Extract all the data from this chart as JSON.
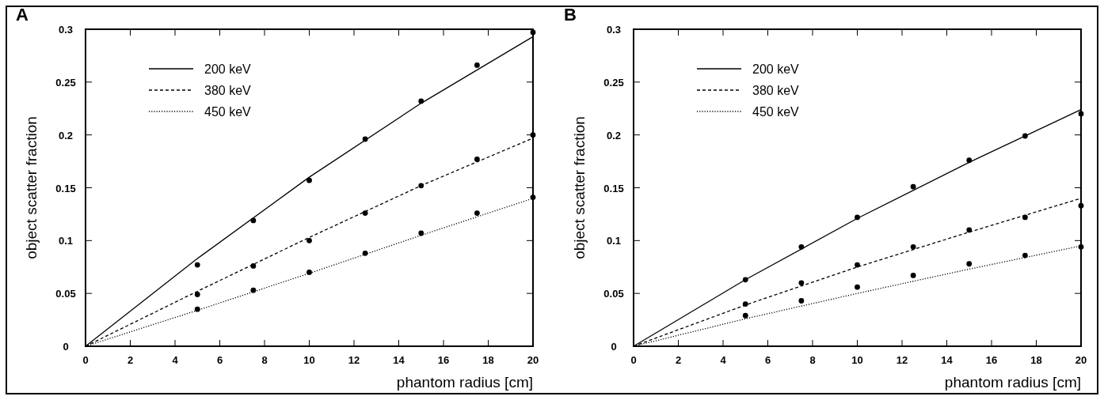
{
  "chart_data": [
    {
      "type": "line",
      "title": "A",
      "xlabel": "phantom radius   [cm]",
      "ylabel": "object scatter fraction",
      "xlim": [
        0,
        20
      ],
      "ylim": [
        0,
        0.3
      ],
      "xticks": [
        0,
        2,
        4,
        6,
        8,
        10,
        12,
        14,
        16,
        18,
        20
      ],
      "yticks": [
        0,
        0.05,
        0.1,
        0.15,
        0.2,
        0.25,
        0.3
      ],
      "grid": false,
      "legend": "top left",
      "series": [
        {
          "name": "200 keV",
          "color": "#000000",
          "line_style": "solid",
          "x": [
            0,
            5,
            10,
            15,
            20
          ],
          "values": [
            0,
            0.083,
            0.16,
            0.23,
            0.293
          ]
        },
        {
          "name": "380 keV",
          "color": "#000000",
          "line_style": "dashed",
          "x": [
            0,
            5,
            10,
            15,
            20
          ],
          "values": [
            0,
            0.052,
            0.103,
            0.152,
            0.197
          ]
        },
        {
          "name": "450 keV",
          "color": "#000000",
          "line_style": "dotted",
          "x": [
            0,
            5,
            10,
            15,
            20
          ],
          "values": [
            0,
            0.034,
            0.069,
            0.105,
            0.14
          ]
        },
        {
          "type": "scatter",
          "color": "#000000",
          "marker": "circle",
          "x": [
            5,
            7.5,
            10,
            12.5,
            15,
            17.5,
            20
          ],
          "values": [
            0.077,
            0.119,
            0.157,
            0.196,
            0.232,
            0.266,
            0.297
          ]
        },
        {
          "type": "scatter",
          "color": "#000000",
          "marker": "circle",
          "x": [
            5,
            7.5,
            10,
            12.5,
            15,
            17.5,
            20
          ],
          "values": [
            0.049,
            0.076,
            0.1,
            0.126,
            0.152,
            0.177,
            0.2
          ]
        },
        {
          "type": "scatter",
          "color": "#000000",
          "marker": "circle",
          "x": [
            5,
            7.5,
            10,
            12.5,
            15,
            17.5,
            20
          ],
          "values": [
            0.035,
            0.053,
            0.07,
            0.088,
            0.107,
            0.126,
            0.141
          ]
        }
      ]
    },
    {
      "type": "line",
      "title": "B",
      "xlabel": "phantom radius   [cm]",
      "ylabel": "object scatter fraction",
      "xlim": [
        0,
        20
      ],
      "ylim": [
        0,
        0.3
      ],
      "xticks": [
        0,
        2,
        4,
        6,
        8,
        10,
        12,
        14,
        16,
        18,
        20
      ],
      "yticks": [
        0,
        0.05,
        0.1,
        0.15,
        0.2,
        0.25,
        0.3
      ],
      "grid": false,
      "legend": "top left",
      "series": [
        {
          "name": "200 keV",
          "color": "#000000",
          "line_style": "solid",
          "x": [
            0,
            5,
            10,
            15,
            20
          ],
          "values": [
            0,
            0.063,
            0.121,
            0.174,
            0.224
          ]
        },
        {
          "name": "380 keV",
          "color": "#000000",
          "line_style": "dashed",
          "x": [
            0,
            5,
            10,
            15,
            20
          ],
          "values": [
            0,
            0.039,
            0.075,
            0.108,
            0.14
          ]
        },
        {
          "name": "450 keV",
          "color": "#000000",
          "line_style": "dotted",
          "x": [
            0,
            5,
            10,
            15,
            20
          ],
          "values": [
            0,
            0.026,
            0.05,
            0.073,
            0.095
          ]
        },
        {
          "type": "scatter",
          "color": "#000000",
          "marker": "circle",
          "x": [
            5,
            7.5,
            10,
            12.5,
            15,
            17.5,
            20
          ],
          "values": [
            0.063,
            0.094,
            0.122,
            0.151,
            0.176,
            0.199,
            0.22
          ]
        },
        {
          "type": "scatter",
          "color": "#000000",
          "marker": "circle",
          "x": [
            5,
            7.5,
            10,
            12.5,
            15,
            17.5,
            20
          ],
          "values": [
            0.04,
            0.06,
            0.077,
            0.094,
            0.11,
            0.122,
            0.133
          ]
        },
        {
          "type": "scatter",
          "color": "#000000",
          "marker": "circle",
          "x": [
            5,
            7.5,
            10,
            12.5,
            15,
            17.5,
            20
          ],
          "values": [
            0.029,
            0.043,
            0.056,
            0.067,
            0.078,
            0.086,
            0.094
          ]
        }
      ]
    }
  ]
}
